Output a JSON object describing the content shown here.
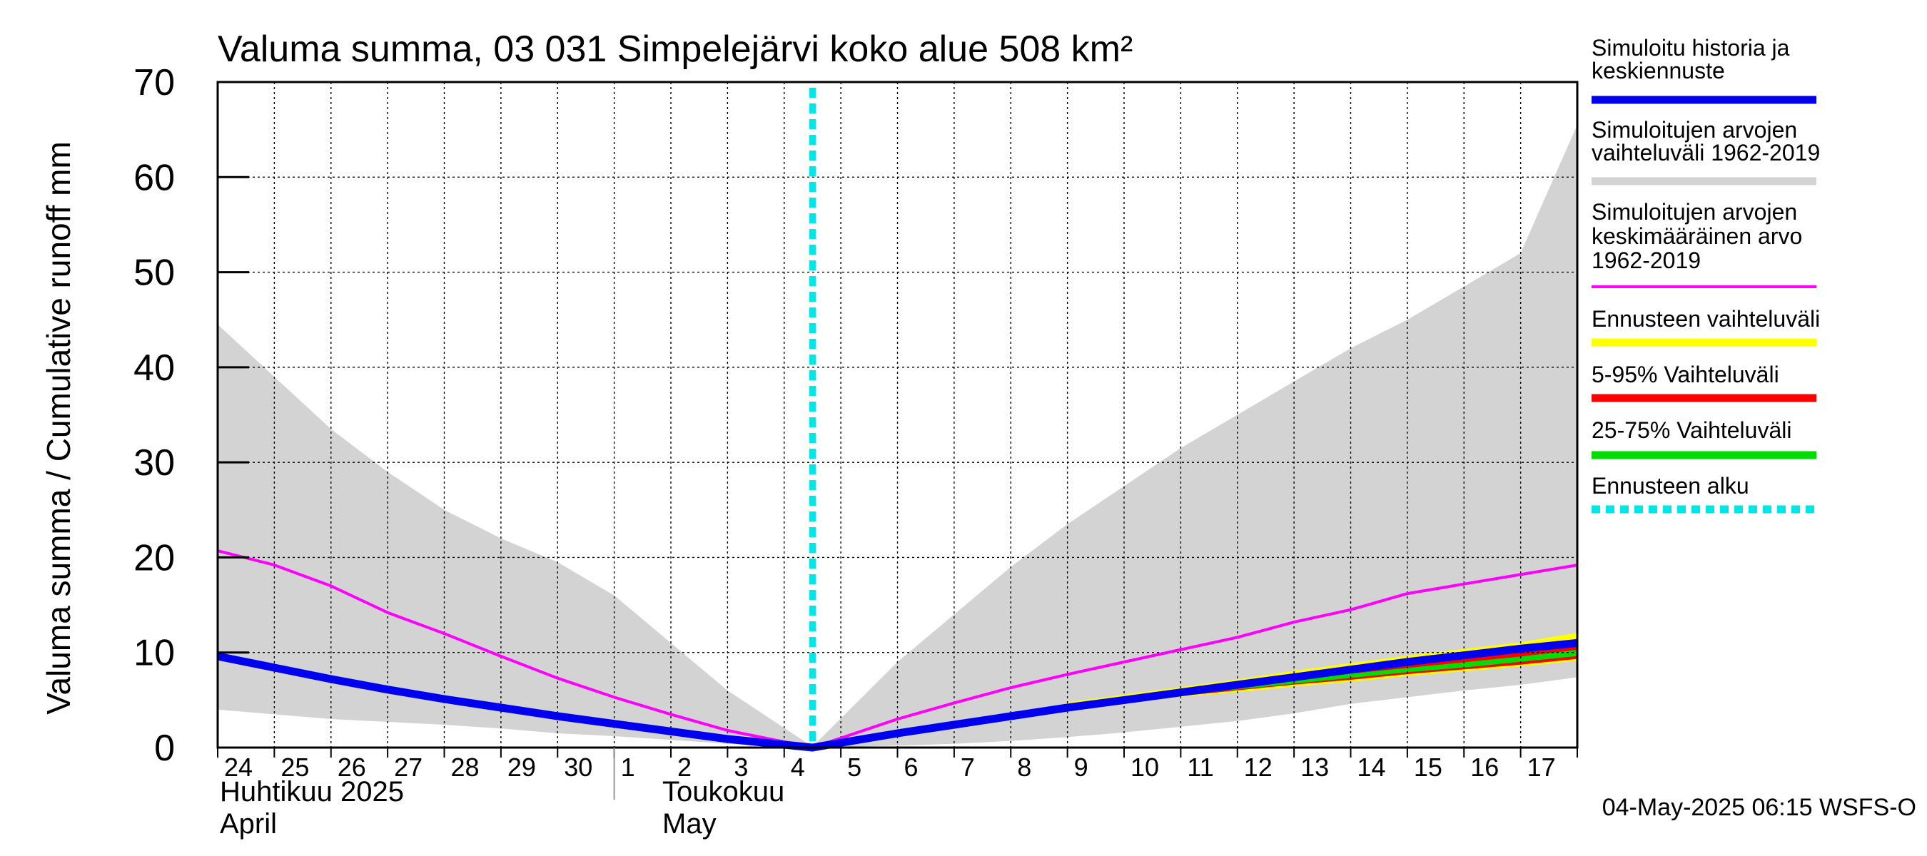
{
  "chart_data": {
    "type": "area",
    "title": "Valuma summa, 03 031 Simpelejärvi koko alue 508 km²",
    "ylabel": "Valuma summa / Cumulative runoff    mm",
    "ylim": [
      0,
      70
    ],
    "yticks": [
      0,
      10,
      20,
      30,
      40,
      50,
      60,
      70
    ],
    "x_day_labels": [
      "24",
      "25",
      "26",
      "27",
      "28",
      "29",
      "30",
      "1",
      "2",
      "3",
      "4",
      "5",
      "6",
      "7",
      "8",
      "9",
      "10",
      "11",
      "12",
      "13",
      "14",
      "15",
      "16",
      "17"
    ],
    "month_labels": {
      "april_fi": "Huhtikuu  2025",
      "april_en": "April",
      "may_fi": "Toukokuu",
      "may_en": "May"
    },
    "x_domain": [
      0,
      24
    ],
    "forecast_start_day": 10.5,
    "timestamp": "04-May-2025 06:15 WSFS-O",
    "series": [
      {
        "name": "Simuloitujen arvojen vaihteluväli 1962-2019",
        "color": "#d3d3d3",
        "x": [
          0,
          1,
          2,
          3,
          4,
          5,
          6,
          7,
          8,
          9,
          10.5,
          12,
          13,
          14,
          15,
          16,
          17,
          18,
          19,
          20,
          21,
          22,
          23,
          24
        ],
        "upper": [
          44.5,
          39,
          33.5,
          29,
          25,
          22,
          19.5,
          16,
          11,
          6,
          0.1,
          9,
          14,
          19,
          23.5,
          27.5,
          31.5,
          35,
          38.5,
          42,
          45,
          48.5,
          52,
          65.5
        ],
        "lower": [
          4,
          3.5,
          3,
          2.7,
          2.4,
          2,
          1.5,
          1.2,
          0.8,
          0.4,
          0,
          0.2,
          0.4,
          0.7,
          1.1,
          1.6,
          2.2,
          2.8,
          3.6,
          4.6,
          5.3,
          6,
          6.6,
          7.4
        ]
      },
      {
        "name": "Ennusteen vaihteluväli",
        "color": "#ffff00",
        "x": [
          15,
          16,
          17,
          18,
          19,
          20,
          21,
          22,
          23,
          24
        ],
        "upper": [
          4.7,
          5.5,
          6.3,
          7.1,
          8,
          8.8,
          9.6,
          10.3,
          11,
          12
        ],
        "lower": [
          4.2,
          4.8,
          5.4,
          5.9,
          6.5,
          7,
          7.6,
          8.1,
          8.6,
          9.2
        ]
      },
      {
        "name": "5-95% Vaihteluväli",
        "color": "#ff0000",
        "x": [
          15,
          16,
          17,
          18,
          19,
          20,
          21,
          22,
          23,
          24
        ],
        "upper": [
          4.5,
          5.2,
          5.9,
          6.6,
          7.3,
          8,
          8.7,
          9.3,
          10,
          11
        ],
        "lower": [
          4.3,
          4.9,
          5.5,
          6.1,
          6.7,
          7.2,
          7.8,
          8.3,
          8.8,
          9.4
        ]
      },
      {
        "name": "25-75% Vaihteluväli",
        "color": "#00dd00",
        "x": [
          15,
          16,
          17,
          18,
          19,
          20,
          21,
          22,
          23,
          24
        ],
        "upper": [
          4.45,
          5.1,
          5.75,
          6.4,
          7.05,
          7.7,
          8.3,
          8.9,
          9.5,
          10.2
        ],
        "lower": [
          4.35,
          5,
          5.6,
          6.2,
          6.8,
          7.4,
          8,
          8.5,
          9.1,
          9.7
        ]
      },
      {
        "name": "Simuloitujen arvojen keskimääräinen arvo 1962-2019",
        "color": "#ff00ff",
        "x": [
          0,
          1,
          2,
          3,
          4,
          5,
          6,
          7,
          8,
          9,
          10.5,
          12,
          13,
          14,
          15,
          16,
          17,
          18,
          19,
          20,
          21,
          22,
          23,
          24
        ],
        "values": [
          20.7,
          19.2,
          17,
          14.2,
          12,
          9.6,
          7.3,
          5.3,
          3.5,
          1.8,
          0,
          3,
          4.7,
          6.3,
          7.7,
          9,
          10.3,
          11.6,
          13.2,
          14.5,
          16.2,
          17.2,
          18.2,
          19.2
        ]
      },
      {
        "name": "Simuloitu historia ja keskiennuste",
        "color": "#0000ee",
        "x": [
          0,
          1,
          2,
          3,
          4,
          5,
          6,
          7,
          8,
          9,
          10.5,
          12,
          13,
          14,
          15,
          16,
          17,
          18,
          19,
          20,
          21,
          22,
          23,
          24
        ],
        "values": [
          9.6,
          8.4,
          7.2,
          6.1,
          5.1,
          4.2,
          3.3,
          2.5,
          1.7,
          0.9,
          0,
          1.5,
          2.4,
          3.3,
          4.2,
          5,
          5.8,
          6.6,
          7.4,
          8.2,
          9,
          9.7,
          10.4,
          11
        ]
      }
    ],
    "legend": [
      {
        "label": [
          "Simuloitu historia ja",
          "keskiennuste"
        ],
        "color": "#0000ee",
        "style": "solid"
      },
      {
        "label": [
          "Simuloitujen arvojen",
          "vaihteluväli 1962-2019"
        ],
        "color": "#d3d3d3",
        "style": "solid"
      },
      {
        "label": [
          "Simuloitujen arvojen",
          "keskimääräinen arvo",
          "   1962-2019"
        ],
        "color": "#ff00ff",
        "style": "thin"
      },
      {
        "label": [
          "Ennusteen vaihteluväli"
        ],
        "color": "#ffff00",
        "style": "solid"
      },
      {
        "label": [
          "5-95% Vaihteluväli"
        ],
        "color": "#ff0000",
        "style": "solid"
      },
      {
        "label": [
          "25-75% Vaihteluväli"
        ],
        "color": "#00dd00",
        "style": "solid"
      },
      {
        "label": [
          "Ennusteen alku"
        ],
        "color": "#00e5e5",
        "style": "dashed"
      }
    ]
  }
}
